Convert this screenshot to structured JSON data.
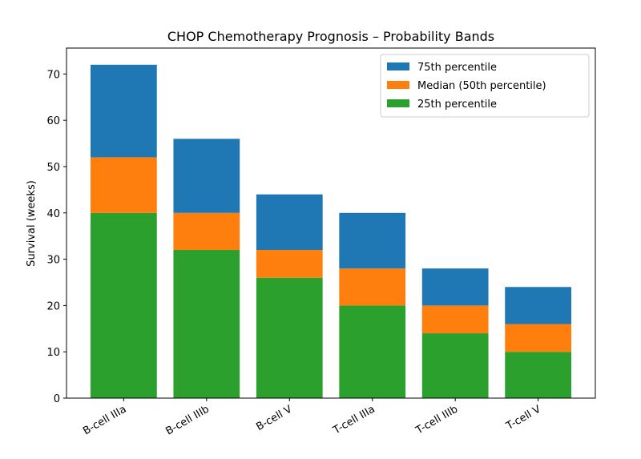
{
  "chart_data": {
    "type": "stacked_bar",
    "title": "CHOP Chemotherapy Prognosis – Probability Bands",
    "y_label": "Survival (weeks)",
    "categories": [
      "B-cell IIIa",
      "B-cell IIIb",
      "B-cell V",
      "T-cell IIIa",
      "T-cell IIIb",
      "T-cell V"
    ],
    "series": [
      {
        "name": "25th percentile",
        "color": "#2ca02c",
        "values": [
          40,
          32,
          26,
          20,
          14,
          10
        ]
      },
      {
        "name": "Median (50th percentile)",
        "color": "#ff7f0e",
        "values": [
          12,
          8,
          6,
          8,
          6,
          6
        ]
      },
      {
        "name": "75th percentile",
        "color": "#1f77b4",
        "values": [
          20,
          16,
          12,
          12,
          8,
          8
        ]
      }
    ],
    "ylim": [
      0,
      75.6
    ],
    "yticks": [
      0,
      10,
      20,
      30,
      40,
      50,
      60,
      70
    ],
    "legend": "upper right"
  }
}
